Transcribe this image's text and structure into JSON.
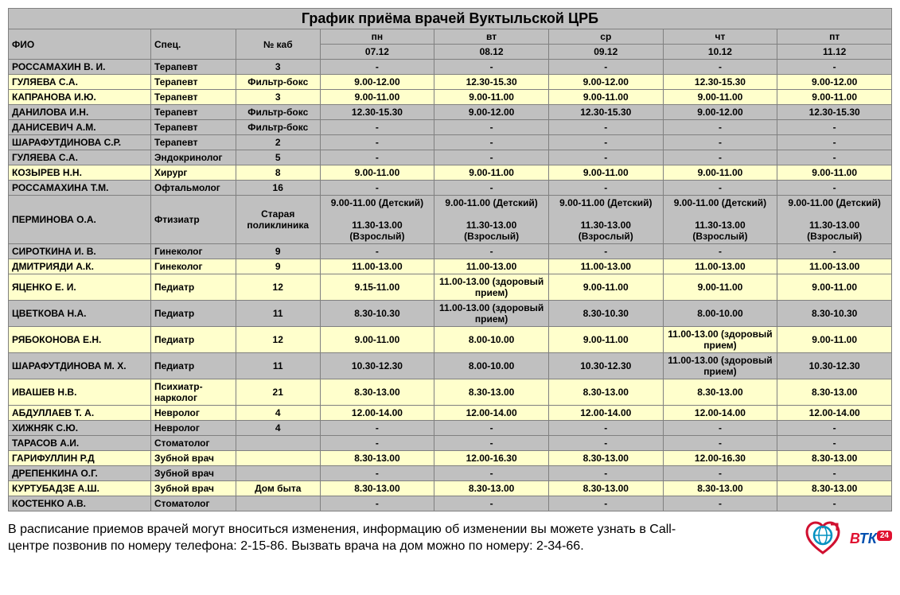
{
  "title": "График приёма врачей Вуктыльской ЦРБ",
  "header": {
    "cols": [
      "ФИО",
      "Спец.",
      "№ каб"
    ],
    "days": [
      "пн",
      "вт",
      "ср",
      "чт",
      "пт"
    ],
    "dates": [
      "07.12",
      "08.12",
      "09.12",
      "10.12",
      "11.12"
    ]
  },
  "rows": [
    {
      "cls": "rg",
      "name": "РОССАМАХИН В. И.",
      "spec": "Терапевт",
      "room": "3",
      "d": [
        "-",
        "-",
        "-",
        "-",
        "-"
      ]
    },
    {
      "cls": "ry",
      "name": "ГУЛЯЕВА С.А.",
      "spec": "Терапевт",
      "room": "Фильтр-бокс",
      "d": [
        "9.00-12.00",
        "12.30-15.30",
        "9.00-12.00",
        "12.30-15.30",
        "9.00-12.00"
      ]
    },
    {
      "cls": "ry",
      "name": "КАПРАНОВА И.Ю.",
      "spec": "Терапевт",
      "room": "3",
      "d": [
        "9.00-11.00",
        "9.00-11.00",
        "9.00-11.00",
        "9.00-11.00",
        "9.00-11.00"
      ]
    },
    {
      "cls": "rg",
      "name": "ДАНИЛОВА И.Н.",
      "spec": "Терапевт",
      "room": "Фильтр-бокс",
      "d": [
        "12.30-15.30",
        "9.00-12.00",
        "12.30-15.30",
        "9.00-12.00",
        "12.30-15.30"
      ]
    },
    {
      "cls": "rg",
      "name": "ДАНИСЕВИЧ А.М.",
      "spec": "Терапевт",
      "room": "Фильтр-бокс",
      "d": [
        "-",
        "-",
        "-",
        "-",
        "-"
      ]
    },
    {
      "cls": "rg",
      "name": "ШАРАФУТДИНОВА С.Р.",
      "spec": "Терапевт",
      "room": "2",
      "d": [
        "-",
        "-",
        "-",
        "-",
        "-"
      ]
    },
    {
      "cls": "rg",
      "name": "ГУЛЯЕВА С.А.",
      "spec": "Эндокринолог",
      "room": "5",
      "d": [
        "-",
        "-",
        "-",
        "-",
        "-"
      ]
    },
    {
      "cls": "ry",
      "name": "КОЗЫРЕВ Н.Н.",
      "spec": "Хирург",
      "room": "8",
      "d": [
        "9.00-11.00",
        "9.00-11.00",
        "9.00-11.00",
        "9.00-11.00",
        "9.00-11.00"
      ]
    },
    {
      "cls": "rg",
      "name": "РОССАМАХИНА Т.М.",
      "spec": "Офтальмолог",
      "room": "16",
      "d": [
        "-",
        "-",
        "-",
        "-",
        "-"
      ]
    },
    {
      "cls": "rg",
      "name": "ПЕРМИНОВА О.А.",
      "spec": "Фтизиатр",
      "room": "Старая поликлиника",
      "d": [
        "9.00-11.00 (Детский)\n\n11.30-13.00 (Взрослый)",
        "9.00-11.00 (Детский)\n\n11.30-13.00 (Взрослый)",
        "9.00-11.00 (Детский)\n\n11.30-13.00 (Взрослый)",
        "9.00-11.00 (Детский)\n\n11.30-13.00 (Взрослый)",
        "9.00-11.00 (Детский)\n\n11.30-13.00 (Взрослый)"
      ]
    },
    {
      "cls": "rg",
      "name": "СИРОТКИНА И. В.",
      "spec": "Гинеколог",
      "room": "9",
      "d": [
        "-",
        "-",
        "-",
        "-",
        "-"
      ]
    },
    {
      "cls": "ry",
      "name": "ДМИТРИЯДИ А.К.",
      "spec": "Гинеколог",
      "room": "9",
      "d": [
        "11.00-13.00",
        "11.00-13.00",
        "11.00-13.00",
        "11.00-13.00",
        "11.00-13.00"
      ]
    },
    {
      "cls": "ry",
      "name": "ЯЦЕНКО Е. И.",
      "spec": "Педиатр",
      "room": "12",
      "d": [
        "9.15-11.00",
        "11.00-13.00 (здоровый прием)",
        "9.00-11.00",
        "9.00-11.00",
        "9.00-11.00"
      ]
    },
    {
      "cls": "rg",
      "name": "ЦВЕТКОВА Н.А.",
      "spec": "Педиатр",
      "room": "11",
      "d": [
        "8.30-10.30",
        "11.00-13.00 (здоровый прием)",
        "8.30-10.30",
        "8.00-10.00",
        "8.30-10.30"
      ]
    },
    {
      "cls": "ry",
      "name": "РЯБОКОНОВА Е.Н.",
      "spec": "Педиатр",
      "room": "12",
      "d": [
        "9.00-11.00",
        "8.00-10.00",
        "9.00-11.00",
        "11.00-13.00 (здоровый прием)",
        "9.00-11.00"
      ]
    },
    {
      "cls": "rg",
      "name": "ШАРАФУТДИНОВА М. Х.",
      "spec": "Педиатр",
      "room": "11",
      "d": [
        "10.30-12.30",
        "8.00-10.00",
        "10.30-12.30",
        "11.00-13.00 (здоровый прием)",
        "10.30-12.30"
      ]
    },
    {
      "cls": "ry",
      "name": "ИВАШЕВ Н.В.",
      "spec": "Психиатр-нарколог",
      "room": "21",
      "d": [
        "8.30-13.00",
        "8.30-13.00",
        "8.30-13.00",
        "8.30-13.00",
        "8.30-13.00"
      ]
    },
    {
      "cls": "ry",
      "name": "АБДУЛЛАЕВ Т. А.",
      "spec": "Невролог",
      "room": "4",
      "d": [
        "12.00-14.00",
        "12.00-14.00",
        "12.00-14.00",
        "12.00-14.00",
        "12.00-14.00"
      ]
    },
    {
      "cls": "rg",
      "name": "ХИЖНЯК С.Ю.",
      "spec": "Невролог",
      "room": "4",
      "d": [
        "-",
        "-",
        "-",
        "-",
        "-"
      ]
    },
    {
      "cls": "rg",
      "name": "ТАРАСОВ А.И.",
      "spec": "Стоматолог",
      "room": "",
      "d": [
        "-",
        "-",
        "-",
        "-",
        "-"
      ]
    },
    {
      "cls": "ry",
      "name": "ГАРИФУЛЛИН Р.Д",
      "spec": "Зубной врач",
      "room": "",
      "d": [
        "8.30-13.00",
        "12.00-16.30",
        "8.30-13.00",
        "12.00-16.30",
        "8.30-13.00"
      ]
    },
    {
      "cls": "rg",
      "name": "ДРЕПЕНКИНА О.Г.",
      "spec": "Зубной врач",
      "room": "",
      "d": [
        "-",
        "-",
        "-",
        "-",
        "-"
      ]
    },
    {
      "cls": "ry",
      "name": "КУРТУБАДЗЕ А.Ш.",
      "spec": "Зубной врач",
      "room": "Дом быта",
      "d": [
        "8.30-13.00",
        "8.30-13.00",
        "8.30-13.00",
        "8.30-13.00",
        "8.30-13.00"
      ]
    },
    {
      "cls": "rg",
      "name": "КОСТЕНКО А.В.",
      "spec": "Стоматолог",
      "room": "",
      "d": [
        "-",
        "-",
        "-",
        "-",
        "-"
      ]
    }
  ],
  "footnote": "В расписание приемов врачей могут вноситься изменения, информацию об изменении вы можете узнать в Call-центре позвонив по номеру телефона: 2-15-86. Вызвать врача на дом можно по номеру: 2-34-66.",
  "btk_label": "ВТК",
  "btk_badge": "24",
  "colors": {
    "header_bg": "#c0c0c0",
    "grey_row": "#c0c0c0",
    "yellow_row": "#ffffcc",
    "border": "#808080"
  }
}
